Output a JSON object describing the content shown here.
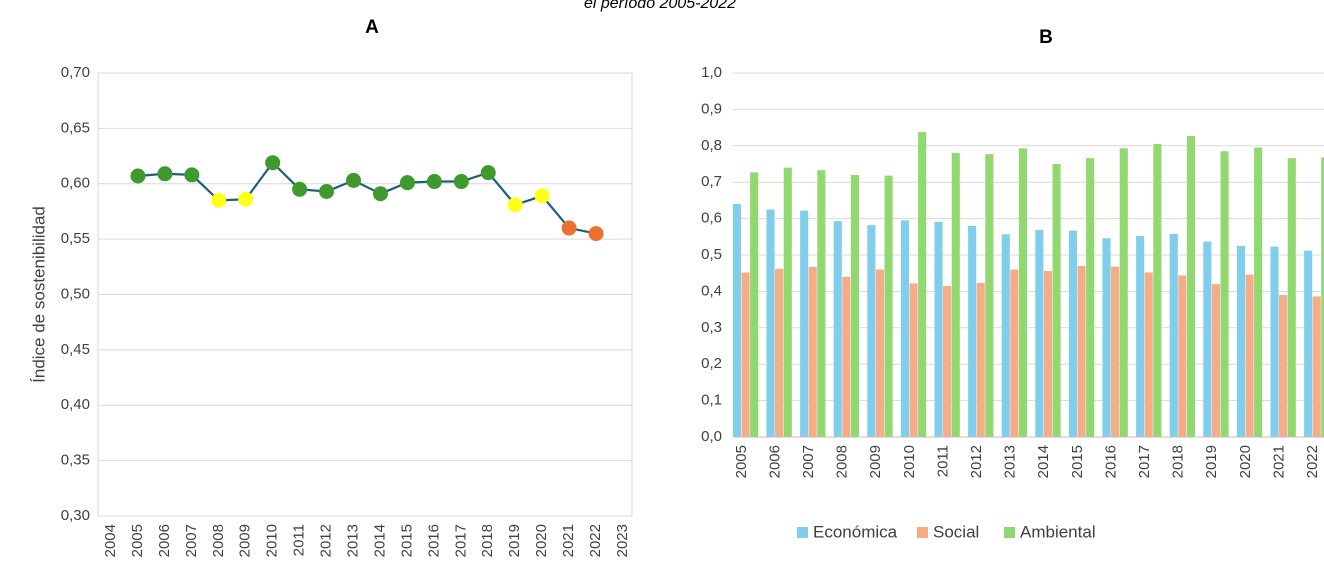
{
  "caption": "el período 2005-2022",
  "chart_data": [
    {
      "type": "line",
      "title": "A",
      "y_label": "Índice de sostenibilidad",
      "x": [
        2005,
        2006,
        2007,
        2008,
        2009,
        2010,
        2011,
        2012,
        2013,
        2014,
        2015,
        2016,
        2017,
        2018,
        2019,
        2020,
        2021,
        2022
      ],
      "values": [
        0.607,
        0.609,
        0.608,
        0.585,
        0.586,
        0.619,
        0.595,
        0.593,
        0.603,
        0.591,
        0.601,
        0.602,
        0.602,
        0.61,
        0.581,
        0.589,
        0.56,
        0.555
      ],
      "line_color": "#1f5f7a",
      "point_colors": [
        "#3f9a2e",
        "#3f9a2e",
        "#3f9a2e",
        "#ffff1a",
        "#ffff1a",
        "#3f9a2e",
        "#3f9a2e",
        "#3f9a2e",
        "#3f9a2e",
        "#3f9a2e",
        "#3f9a2e",
        "#3f9a2e",
        "#3f9a2e",
        "#3f9a2e",
        "#ffff1a",
        "#ffff1a",
        "#ed7030",
        "#ed7030"
      ],
      "xlim": [
        2004,
        2023
      ],
      "xticks": [
        2004,
        2005,
        2006,
        2007,
        2008,
        2009,
        2010,
        2011,
        2012,
        2013,
        2014,
        2015,
        2016,
        2017,
        2018,
        2019,
        2020,
        2021,
        2022,
        2023
      ],
      "ylim": [
        0.3,
        0.7
      ],
      "yticks": [
        {
          "value": 0.3,
          "label": "0,30"
        },
        {
          "value": 0.35,
          "label": "0,35"
        },
        {
          "value": 0.4,
          "label": "0,40"
        },
        {
          "value": 0.45,
          "label": "0,45"
        },
        {
          "value": 0.5,
          "label": "0,50"
        },
        {
          "value": 0.55,
          "label": "0,55"
        },
        {
          "value": 0.6,
          "label": "0,60"
        },
        {
          "value": 0.65,
          "label": "0,65"
        },
        {
          "value": 0.7,
          "label": "0,70"
        }
      ],
      "grid": true
    },
    {
      "type": "bar",
      "title": "B",
      "categories": [
        "2005",
        "2006",
        "2007",
        "2008",
        "2009",
        "2010",
        "2011",
        "2012",
        "2013",
        "2014",
        "2015",
        "2016",
        "2017",
        "2018",
        "2019",
        "2020",
        "2021",
        "2022"
      ],
      "series": [
        {
          "name": "Económica",
          "color": "#80cdec",
          "values": [
            0.64,
            0.625,
            0.622,
            0.593,
            0.582,
            0.595,
            0.591,
            0.58,
            0.557,
            0.569,
            0.567,
            0.546,
            0.552,
            0.558,
            0.537,
            0.525,
            0.523,
            0.512
          ]
        },
        {
          "name": "Social",
          "color": "#f4ad86",
          "values": [
            0.452,
            0.462,
            0.467,
            0.44,
            0.46,
            0.422,
            0.415,
            0.423,
            0.46,
            0.456,
            0.47,
            0.468,
            0.452,
            0.444,
            0.42,
            0.446,
            0.39,
            0.386
          ]
        },
        {
          "name": "Ambiental",
          "color": "#90d86f",
          "values": [
            0.727,
            0.74,
            0.733,
            0.72,
            0.718,
            0.838,
            0.78,
            0.777,
            0.793,
            0.75,
            0.766,
            0.793,
            0.805,
            0.827,
            0.785,
            0.795,
            0.766,
            0.768
          ]
        }
      ],
      "ylim": [
        0,
        1
      ],
      "yticks": [
        {
          "value": 0,
          "label": "0,0"
        },
        {
          "value": 0.1,
          "label": "0,1"
        },
        {
          "value": 0.2,
          "label": "0,2"
        },
        {
          "value": 0.3,
          "label": "0,3"
        },
        {
          "value": 0.4,
          "label": "0,4"
        },
        {
          "value": 0.5,
          "label": "0,5"
        },
        {
          "value": 0.6,
          "label": "0,6"
        },
        {
          "value": 0.7,
          "label": "0,7"
        },
        {
          "value": 0.8,
          "label": "0,8"
        },
        {
          "value": 0.9,
          "label": "0,9"
        },
        {
          "value": 1,
          "label": "1,0"
        }
      ],
      "grid": true,
      "legend": "bottom"
    }
  ]
}
